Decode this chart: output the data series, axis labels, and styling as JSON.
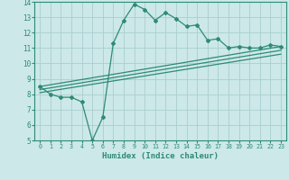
{
  "main_x": [
    0,
    1,
    2,
    3,
    4,
    5,
    6,
    7,
    8,
    9,
    10,
    11,
    12,
    13,
    14,
    15,
    16,
    17,
    18,
    19,
    20,
    21,
    22,
    23
  ],
  "main_y": [
    8.5,
    8.0,
    7.8,
    7.8,
    7.5,
    5.0,
    6.5,
    11.3,
    12.8,
    13.85,
    13.5,
    12.8,
    13.3,
    12.9,
    12.4,
    12.5,
    11.5,
    11.6,
    11.0,
    11.1,
    11.0,
    11.0,
    11.2,
    11.1
  ],
  "lines": [
    {
      "x": [
        0,
        23
      ],
      "y": [
        8.5,
        11.1
      ]
    },
    {
      "x": [
        0,
        23
      ],
      "y": [
        8.3,
        10.85
      ]
    },
    {
      "x": [
        0,
        23
      ],
      "y": [
        8.1,
        10.6
      ]
    }
  ],
  "color": "#2e8b74",
  "bg_color": "#cce8e8",
  "grid_color": "#aacece",
  "xlabel": "Humidex (Indice chaleur)",
  "xlim": [
    -0.5,
    23.5
  ],
  "ylim": [
    5,
    14
  ],
  "xticks": [
    0,
    1,
    2,
    3,
    4,
    5,
    6,
    7,
    8,
    9,
    10,
    11,
    12,
    13,
    14,
    15,
    16,
    17,
    18,
    19,
    20,
    21,
    22,
    23
  ],
  "yticks": [
    5,
    6,
    7,
    8,
    9,
    10,
    11,
    12,
    13,
    14
  ]
}
